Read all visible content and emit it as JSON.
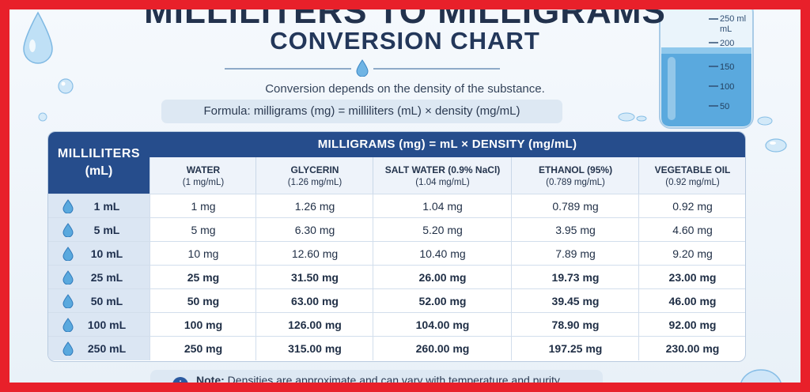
{
  "title": {
    "line1": "MILLILITERS TO MILLIGRAMS",
    "line2": "CONVERSION CHART"
  },
  "subtitle": "Conversion depends on the density of the substance.",
  "formula": "Formula: milligrams (mg) = milliliters (mL) × density (mg/mL)",
  "table": {
    "ml_header_line1": "MILLILITERS",
    "ml_header_line2": "(mL)",
    "mg_header": "MILLIGRAMS (mg) = mL × DENSITY (mg/mL)",
    "columns": [
      {
        "name": "WATER",
        "density": "(1 mg/mL)"
      },
      {
        "name": "GLYCERIN",
        "density": "(1.26 mg/mL)"
      },
      {
        "name": "SALT WATER (0.9% NaCl)",
        "density": "(1.04 mg/mL)"
      },
      {
        "name": "ETHANOL (95%)",
        "density": "(0.789 mg/mL)"
      },
      {
        "name": "VEGETABLE OIL",
        "density": "(0.92 mg/mL)"
      }
    ],
    "rows": [
      {
        "ml": "1 mL",
        "values": [
          "1 mg",
          "1.26 mg",
          "1.04 mg",
          "0.789 mg",
          "0.92 mg"
        ]
      },
      {
        "ml": "5 mL",
        "values": [
          "5 mg",
          "6.30 mg",
          "5.20 mg",
          "3.95 mg",
          "4.60 mg"
        ]
      },
      {
        "ml": "10 mL",
        "values": [
          "10 mg",
          "12.60 mg",
          "10.40 mg",
          "7.89 mg",
          "9.20 mg"
        ]
      },
      {
        "ml": "25 mL",
        "values": [
          "25 mg",
          "31.50 mg",
          "26.00 mg",
          "19.73 mg",
          "23.00 mg"
        ]
      },
      {
        "ml": "50 mL",
        "values": [
          "50 mg",
          "63.00 mg",
          "52.00 mg",
          "39.45 mg",
          "46.00 mg"
        ]
      },
      {
        "ml": "100 mL",
        "values": [
          "100 mg",
          "126.00 mg",
          "104.00 mg",
          "78.90 mg",
          "92.00 mg"
        ]
      },
      {
        "ml": "250 mL",
        "values": [
          "250 mg",
          "315.00 mg",
          "260.00 mg",
          "197.25 mg",
          "230.00 mg"
        ]
      }
    ]
  },
  "note": {
    "label": "Note:",
    "text": "Densities are approximate and can vary with temperature and purity."
  },
  "beaker": {
    "top_label": "250 ml",
    "unit_label": "mL",
    "marks": [
      "200",
      "150",
      "100",
      "50"
    ]
  },
  "colors": {
    "frame": "#e8202a",
    "header_blue": "#264d8c",
    "ml_column_bg": "#dbe6f3",
    "water_blue": "#5aa9de"
  },
  "icons": {
    "row_marker": "water-drop-icon",
    "note": "info-icon",
    "decoration": "water-drop-icon"
  }
}
